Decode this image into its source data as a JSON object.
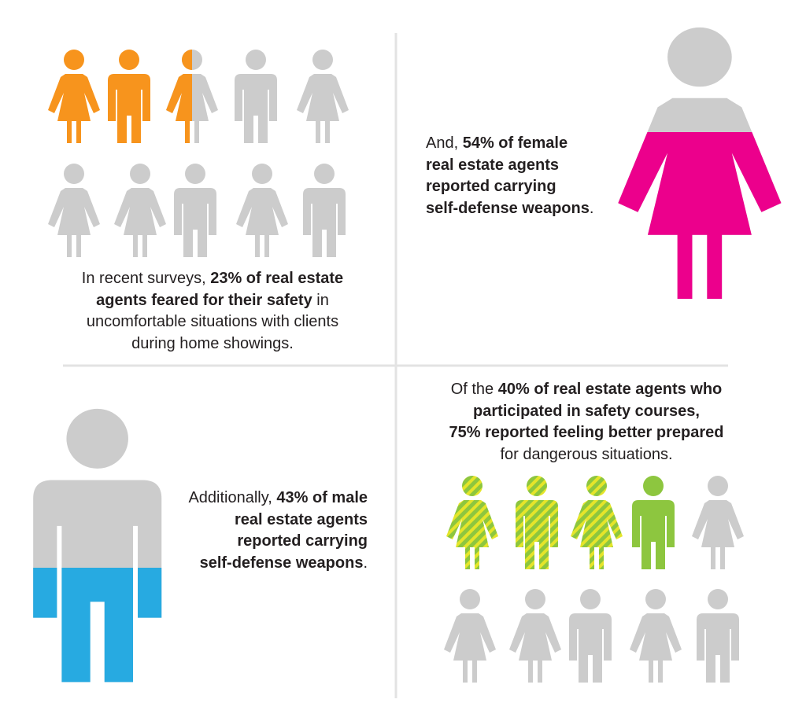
{
  "panels": [
    {
      "lines": [
        [
          {
            "text": "In recent surveys, "
          },
          {
            "text": "23% of real estate",
            "bold": true
          }
        ],
        [
          {
            "text": "agents feared for their safety",
            "bold": true
          },
          {
            "text": " in"
          }
        ],
        [
          {
            "text": "uncomfortable situations with clients"
          }
        ],
        [
          {
            "text": "during home showings."
          }
        ]
      ]
    },
    {
      "lines": [
        [
          {
            "text": "And, "
          },
          {
            "text": "54% of female",
            "bold": true
          }
        ],
        [
          {
            "text": "real estate agents",
            "bold": true
          }
        ],
        [
          {
            "text": "reported carrying",
            "bold": true
          }
        ],
        [
          {
            "text": "self-defense weapons",
            "bold": true
          },
          {
            "text": "."
          }
        ]
      ]
    },
    {
      "lines": [
        [
          {
            "text": "Additionally, "
          },
          {
            "text": "43% of male",
            "bold": true
          }
        ],
        [
          {
            "text": "real estate agents",
            "bold": true
          }
        ],
        [
          {
            "text": "reported carrying",
            "bold": true
          }
        ],
        [
          {
            "text": "self-defense weapons",
            "bold": true
          },
          {
            "text": "."
          }
        ]
      ]
    },
    {
      "lines": [
        [
          {
            "text": "Of the "
          },
          {
            "text": "40% of real estate agents who",
            "bold": true
          }
        ],
        [
          {
            "text": "participated in safety courses,",
            "bold": true
          }
        ],
        [
          {
            "text": "75% reported feeling better prepared",
            "bold": true
          }
        ],
        [
          {
            "text": "for dangerous situations."
          }
        ]
      ]
    }
  ]
}
